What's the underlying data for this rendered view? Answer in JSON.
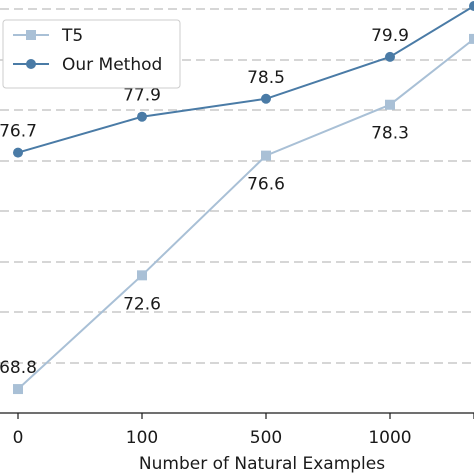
{
  "chart_data": {
    "type": "line",
    "categories": [
      "0",
      "100",
      "500",
      "1000",
      ""
    ],
    "xlabel": "Number of Natural Examples",
    "ylabel": "",
    "title": "",
    "ylim": [
      68.0,
      81.8
    ],
    "grid": "horizontal dashed",
    "legend_position": "top-left",
    "series": [
      {
        "name": "T5",
        "color": "#a9c0d6",
        "marker": "square",
        "values": [
          68.8,
          72.6,
          76.6,
          78.3,
          80.5
        ],
        "labels": [
          "68.8",
          "72.6",
          "76.6",
          "78.3",
          ""
        ]
      },
      {
        "name": "Our Method",
        "color": "#4a7ba6",
        "marker": "circle",
        "values": [
          76.7,
          77.9,
          78.5,
          79.9,
          81.6
        ],
        "labels": [
          "76.7",
          "77.9",
          "78.5",
          "79.9",
          ""
        ]
      }
    ]
  }
}
